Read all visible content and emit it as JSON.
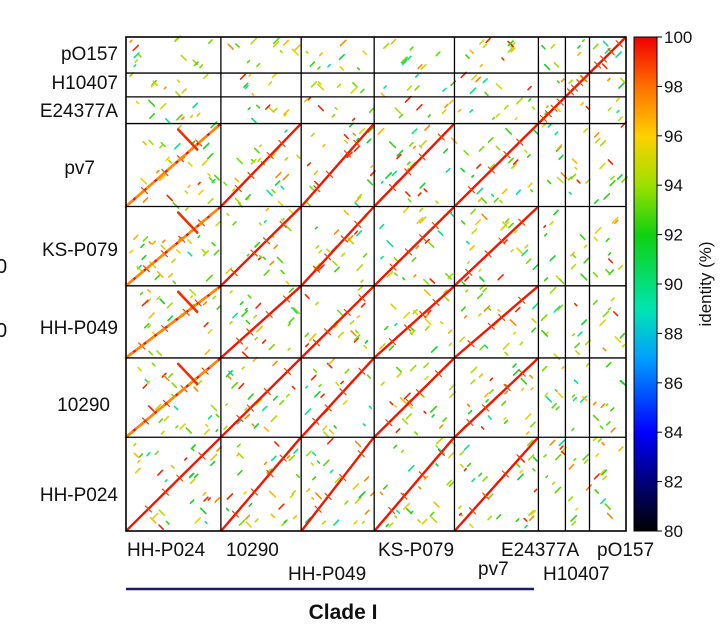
{
  "plot": {
    "genomes": [
      "HH-P024",
      "10290",
      "HH-P049",
      "KS-P079",
      "pv7",
      "E24377A",
      "H10407",
      "pO157"
    ],
    "genome_sizes_kb": [
      130,
      110,
      100,
      110,
      115,
      37,
      33,
      50
    ],
    "row_labels_top_to_bottom": [
      "pO157",
      "H10407",
      "E24377A",
      "pv7",
      "KS-P079",
      "HH-P049",
      "10290",
      "HH-P024"
    ],
    "bottom_labels": {
      "row1": [
        "HH-P024",
        "10290",
        "KS-P079",
        "E24377A",
        "pO157"
      ],
      "row2": [
        "HH-P049",
        "pv7",
        "H10407"
      ]
    },
    "clade_label": "Clade I",
    "clade_genomes": [
      "HH-P024",
      "10290",
      "HH-P049",
      "KS-P079",
      "pv7"
    ],
    "left_edge_fragments": [
      "0",
      "0"
    ]
  },
  "colorbar": {
    "title": "identity (%)",
    "min": 80,
    "max": 100,
    "ticks": [
      "100",
      "98",
      "96",
      "94",
      "92",
      "90",
      "88",
      "86",
      "84",
      "82",
      "80"
    ],
    "stops": [
      {
        "value": 80,
        "color": "#000000"
      },
      {
        "value": 82,
        "color": "#00007a"
      },
      {
        "value": 84,
        "color": "#0000ff"
      },
      {
        "value": 87,
        "color": "#00a0ff"
      },
      {
        "value": 89,
        "color": "#00e5b0"
      },
      {
        "value": 92,
        "color": "#10d010"
      },
      {
        "value": 94,
        "color": "#9ee000"
      },
      {
        "value": 96,
        "color": "#ffd000"
      },
      {
        "value": 98,
        "color": "#ff7000"
      },
      {
        "value": 100,
        "color": "#ee0000"
      }
    ]
  }
}
